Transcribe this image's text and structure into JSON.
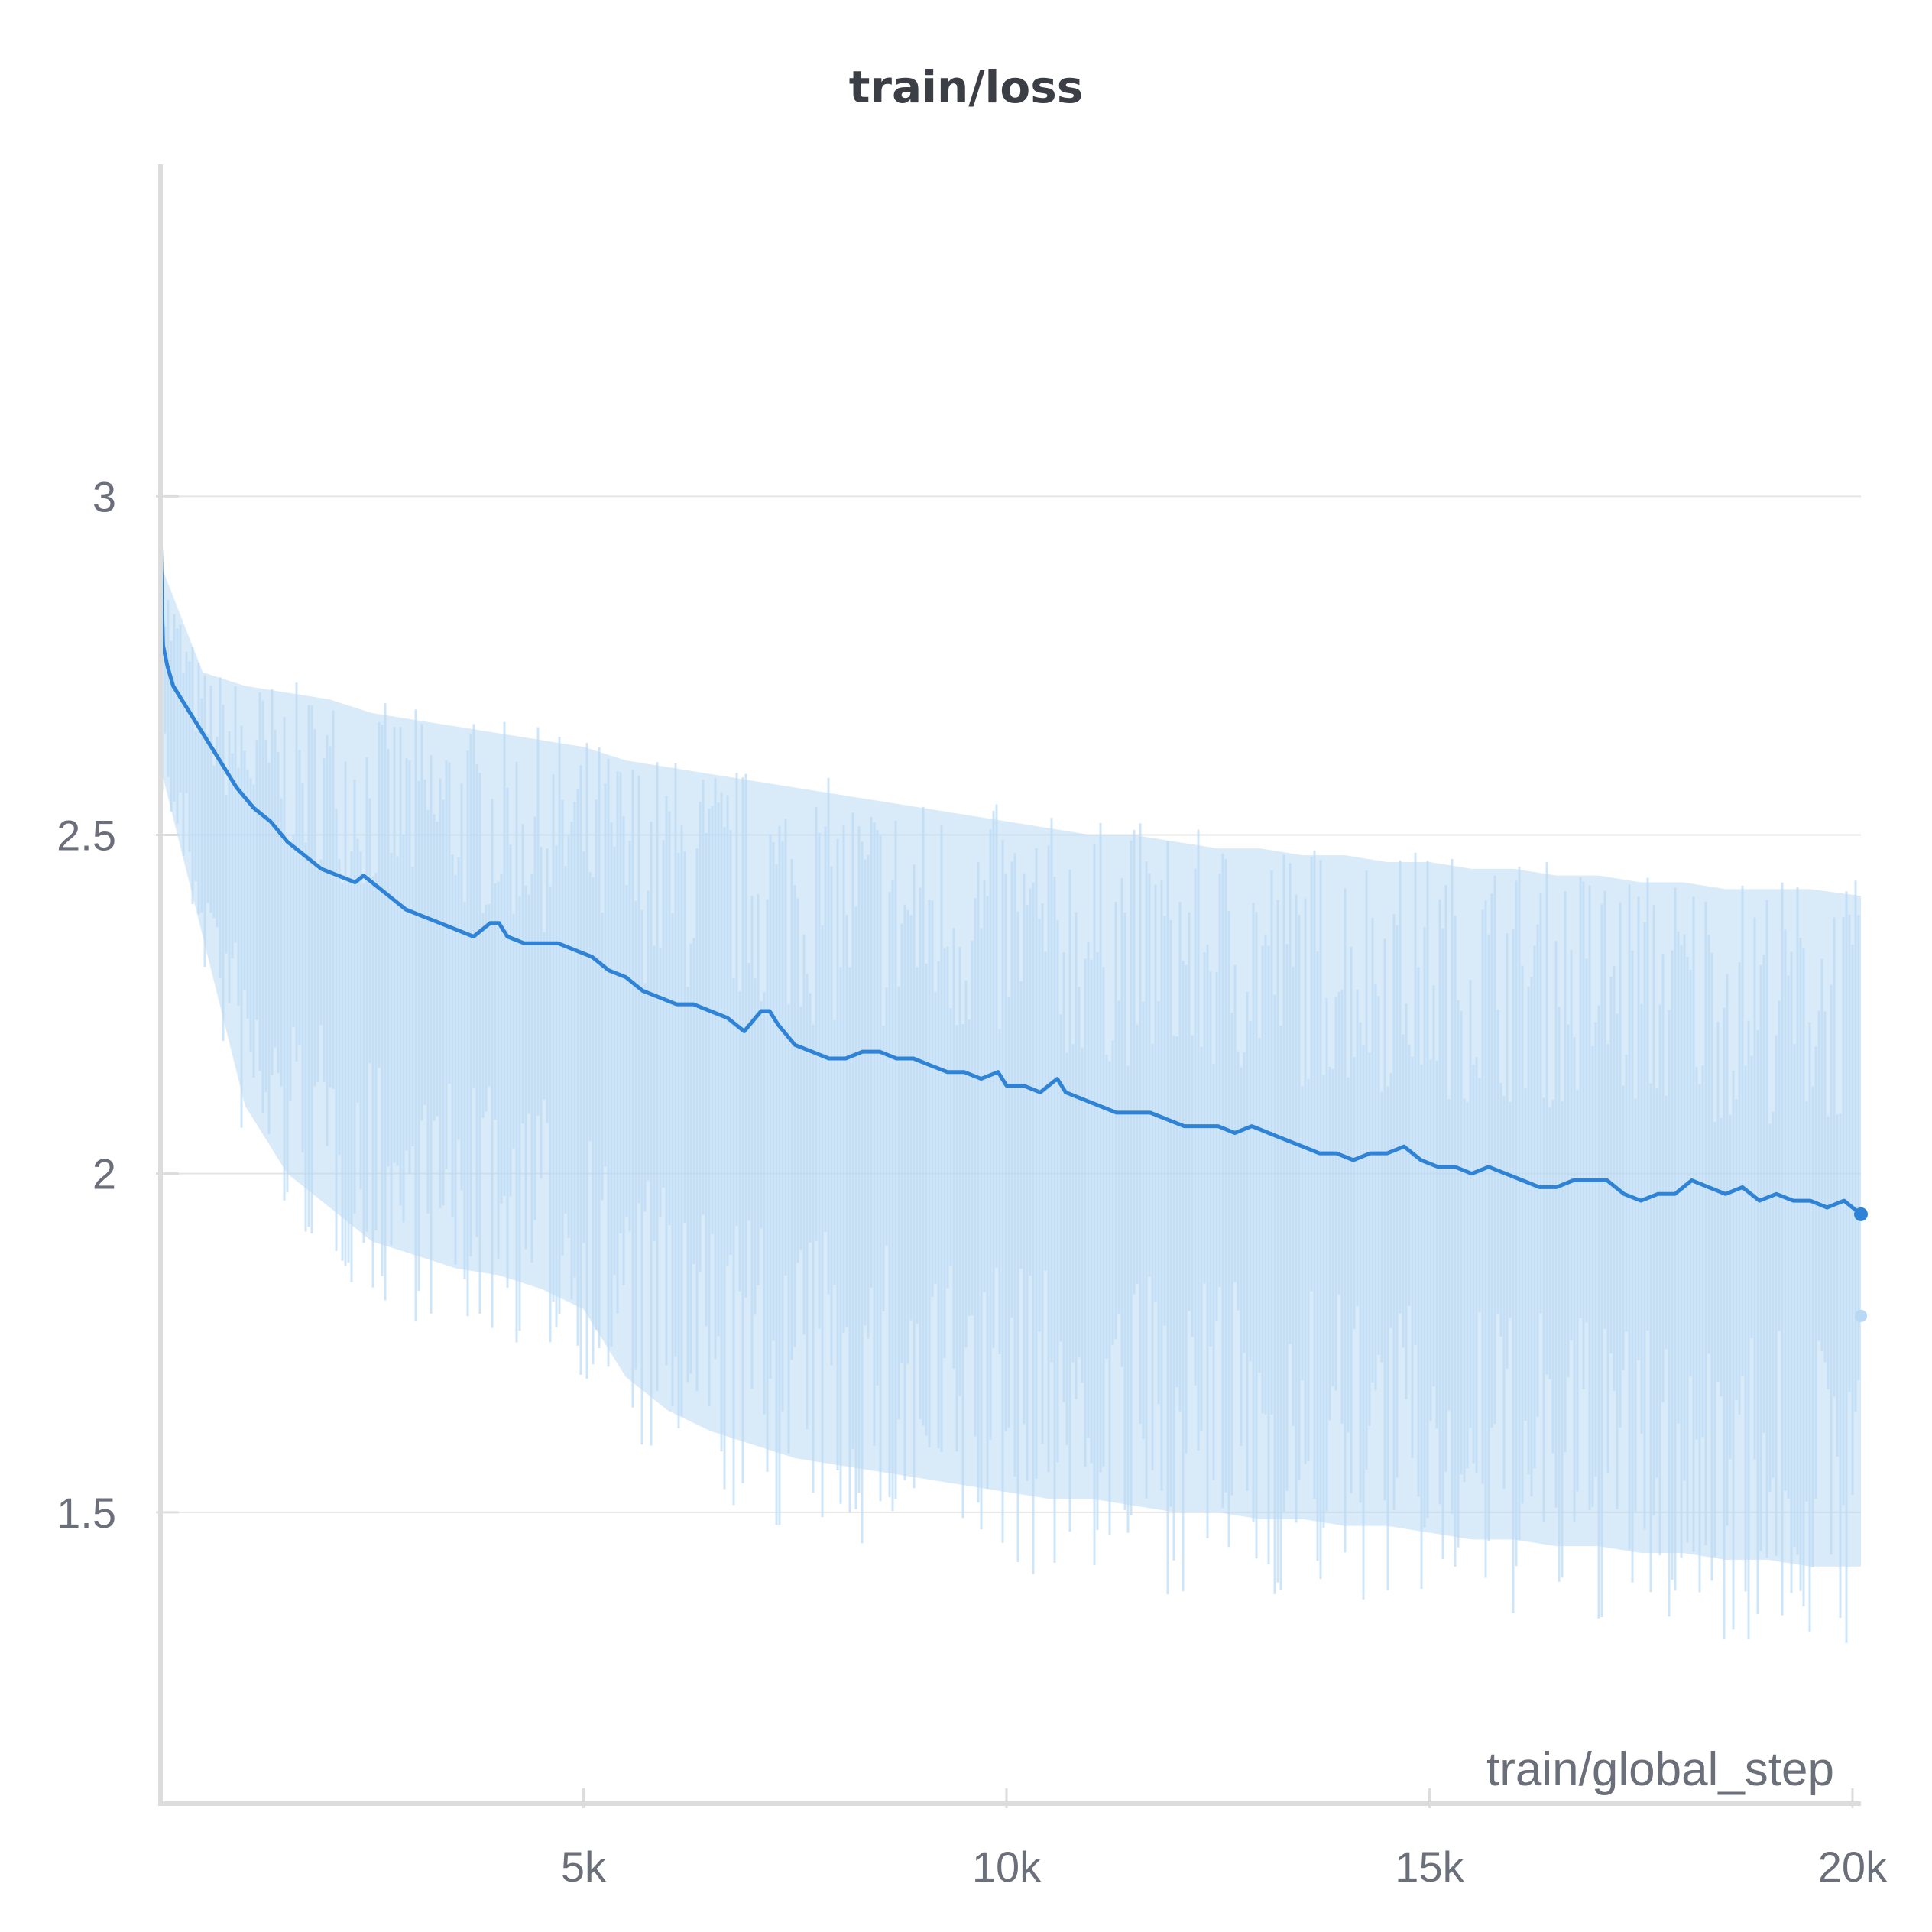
{
  "chart_data": {
    "type": "line",
    "title": "train/loss",
    "xlabel": "train/global_step",
    "ylabel": "",
    "xlim": [
      0,
      20100
    ],
    "ylim": [
      1.07,
      3.49
    ],
    "x_ticks": [
      5000,
      10000,
      15000,
      20000
    ],
    "x_tick_labels": [
      "5k",
      "10k",
      "15k",
      "20k"
    ],
    "y_ticks": [
      1.5,
      2,
      2.5,
      3
    ],
    "y_tick_labels": [
      "1.5",
      "2",
      "2.5",
      "3"
    ],
    "grid": "horizontal",
    "colors": {
      "line": "#2f83d6",
      "raw": "#b9d8f4",
      "grid": "#e5e5e5",
      "axis": "#dcdcdc"
    },
    "series": [
      {
        "role": "smoothed",
        "x": [
          0,
          30,
          80,
          150,
          300,
          500,
          700,
          900,
          1100,
          1300,
          1500,
          1700,
          1900,
          2100,
          2300,
          2400,
          2500,
          2700,
          2900,
          3100,
          3300,
          3500,
          3700,
          3900,
          4000,
          4100,
          4300,
          4500,
          4700,
          4900,
          5100,
          5300,
          5500,
          5700,
          5900,
          6100,
          6300,
          6500,
          6700,
          6900,
          7100,
          7200,
          7300,
          7500,
          7700,
          7900,
          8100,
          8300,
          8500,
          8700,
          8900,
          9100,
          9300,
          9500,
          9700,
          9900,
          10000,
          10200,
          10400,
          10600,
          10700,
          10900,
          11100,
          11300,
          11500,
          11700,
          11900,
          12100,
          12300,
          12500,
          12700,
          12900,
          13100,
          13300,
          13500,
          13700,
          13900,
          14100,
          14300,
          14500,
          14700,
          14900,
          15100,
          15300,
          15500,
          15700,
          15900,
          16100,
          16300,
          16500,
          16700,
          16900,
          17100,
          17300,
          17500,
          17700,
          17900,
          18100,
          18300,
          18500,
          18700,
          18900,
          19100,
          19300,
          19500,
          19700,
          19900,
          20100
        ],
        "y": [
          2.95,
          2.78,
          2.75,
          2.72,
          2.69,
          2.65,
          2.61,
          2.57,
          2.54,
          2.52,
          2.49,
          2.47,
          2.45,
          2.44,
          2.43,
          2.44,
          2.43,
          2.41,
          2.39,
          2.38,
          2.37,
          2.36,
          2.35,
          2.37,
          2.37,
          2.35,
          2.34,
          2.34,
          2.34,
          2.33,
          2.32,
          2.3,
          2.29,
          2.27,
          2.26,
          2.25,
          2.25,
          2.24,
          2.23,
          2.21,
          2.24,
          2.24,
          2.22,
          2.19,
          2.18,
          2.17,
          2.17,
          2.18,
          2.18,
          2.17,
          2.17,
          2.16,
          2.15,
          2.15,
          2.14,
          2.15,
          2.13,
          2.13,
          2.12,
          2.14,
          2.12,
          2.11,
          2.1,
          2.09,
          2.09,
          2.09,
          2.08,
          2.07,
          2.07,
          2.07,
          2.06,
          2.07,
          2.06,
          2.05,
          2.04,
          2.03,
          2.03,
          2.02,
          2.03,
          2.03,
          2.04,
          2.02,
          2.01,
          2.01,
          2.0,
          2.01,
          2.0,
          1.99,
          1.98,
          1.98,
          1.99,
          1.99,
          1.99,
          1.97,
          1.96,
          1.97,
          1.97,
          1.99,
          1.98,
          1.97,
          1.98,
          1.96,
          1.97,
          1.96,
          1.96,
          1.95,
          1.96,
          1.94
        ]
      },
      {
        "role": "raw-envelope",
        "x": [
          0,
          500,
          1000,
          1500,
          2000,
          2500,
          3000,
          3500,
          4000,
          4500,
          5000,
          5500,
          6000,
          6500,
          7000,
          7500,
          8000,
          8500,
          9000,
          9500,
          10000,
          10500,
          11000,
          11500,
          12000,
          12500,
          13000,
          13500,
          14000,
          14500,
          15000,
          15500,
          16000,
          16500,
          17000,
          17500,
          18000,
          18500,
          19000,
          19500,
          20100
        ],
        "y_high": [
          2.9,
          2.74,
          2.72,
          2.71,
          2.7,
          2.68,
          2.67,
          2.66,
          2.65,
          2.64,
          2.63,
          2.61,
          2.6,
          2.59,
          2.58,
          2.57,
          2.56,
          2.55,
          2.54,
          2.53,
          2.52,
          2.51,
          2.5,
          2.5,
          2.49,
          2.48,
          2.48,
          2.47,
          2.47,
          2.46,
          2.46,
          2.45,
          2.45,
          2.44,
          2.44,
          2.43,
          2.43,
          2.42,
          2.42,
          2.42,
          2.41
        ],
        "y_low": [
          2.6,
          2.35,
          2.1,
          2.0,
          1.95,
          1.9,
          1.88,
          1.86,
          1.85,
          1.83,
          1.8,
          1.7,
          1.65,
          1.62,
          1.6,
          1.58,
          1.57,
          1.56,
          1.55,
          1.54,
          1.53,
          1.52,
          1.52,
          1.51,
          1.5,
          1.5,
          1.49,
          1.49,
          1.48,
          1.48,
          1.47,
          1.46,
          1.46,
          1.45,
          1.45,
          1.44,
          1.44,
          1.43,
          1.43,
          1.42,
          1.42
        ]
      }
    ],
    "last_point": {
      "x": 20100,
      "smoothed": 1.94,
      "raw": 1.79
    }
  }
}
